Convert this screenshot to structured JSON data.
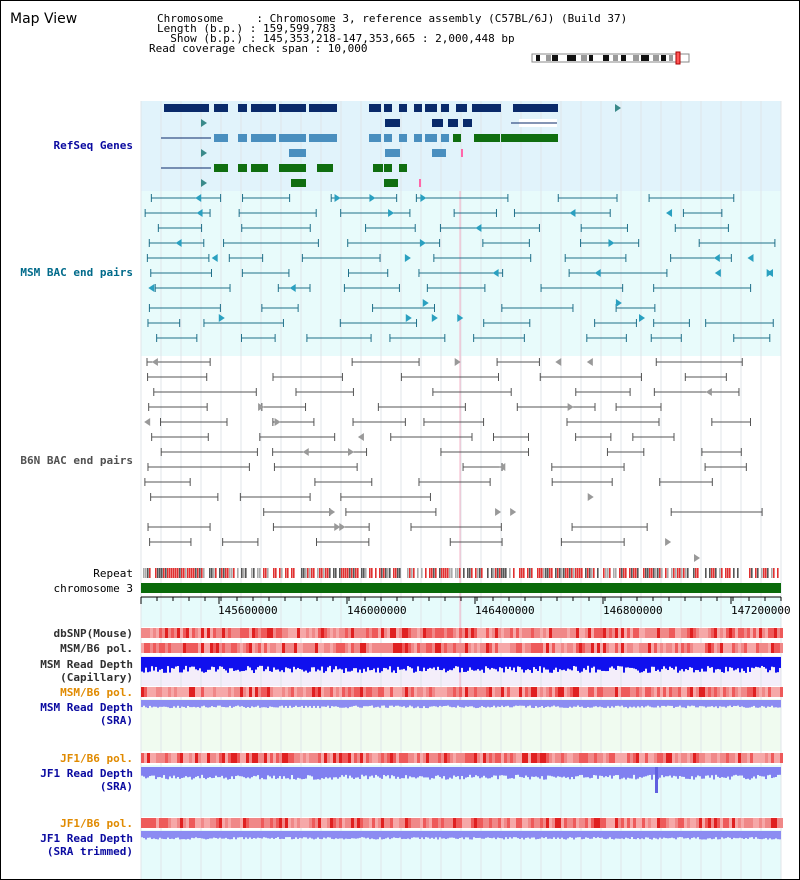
{
  "window_title": "Map View",
  "header": {
    "chrom_line": "Chromosome     : Chromosome 3, reference assembly (C57BL/6J) (Build 37)",
    "length_line": "Length (b.p.) : 159,599,783",
    "show_line": "  Show (b.p.) : 145,353,218-147,353,665 : 2,000,448 bp",
    "coverage_line": "Read coverage check span : 10,000"
  },
  "tracks": {
    "refseq": "RefSeq Genes",
    "msm_bac": "MSM BAC end pairs",
    "b6n_bac": "B6N BAC end pairs",
    "repeat": "Repeat",
    "chromosome": "chromosome 3",
    "dbsnp": "dbSNP(Mouse)",
    "msm_b6_pol_1": "MSM/B6 pol.",
    "msm_depth_cap_1": "MSM Read Depth",
    "msm_depth_cap_2": "(Capillary)",
    "msm_b6_pol_2": "MSM/B6 pol.",
    "msm_depth_sra_1": "MSM Read Depth",
    "msm_depth_sra_2": "(SRA)",
    "jf1_b6_pol_1": "JF1/B6 pol.",
    "jf1_depth_1": "JF1 Read Depth",
    "jf1_depth_2": "(SRA)",
    "jf1_b6_pol_2": "JF1/B6 pol.",
    "jf1_trim_1": "JF1 Read Depth",
    "jf1_trim_2": "(SRA trimmed)"
  },
  "axis": {
    "ticks": [
      "145600000",
      "146000000",
      "146400000",
      "146800000",
      "147200000"
    ]
  },
  "colors": {
    "refseq_bg": "#e1f3fb",
    "msm_bg": "#e8fbfb",
    "gene_dark": "#0a2a6a",
    "gene_mid": "#4a8fbf",
    "gene_green": "#106e10",
    "bac_blue": "#20708a",
    "chrom_green": "#0a6a0a",
    "depth_blue": "#1010ee",
    "depth_lavender": "#8080f0",
    "label_blue": "#0a0aa0",
    "label_teal": "#006a8a",
    "label_orange": "#e08a00"
  }
}
